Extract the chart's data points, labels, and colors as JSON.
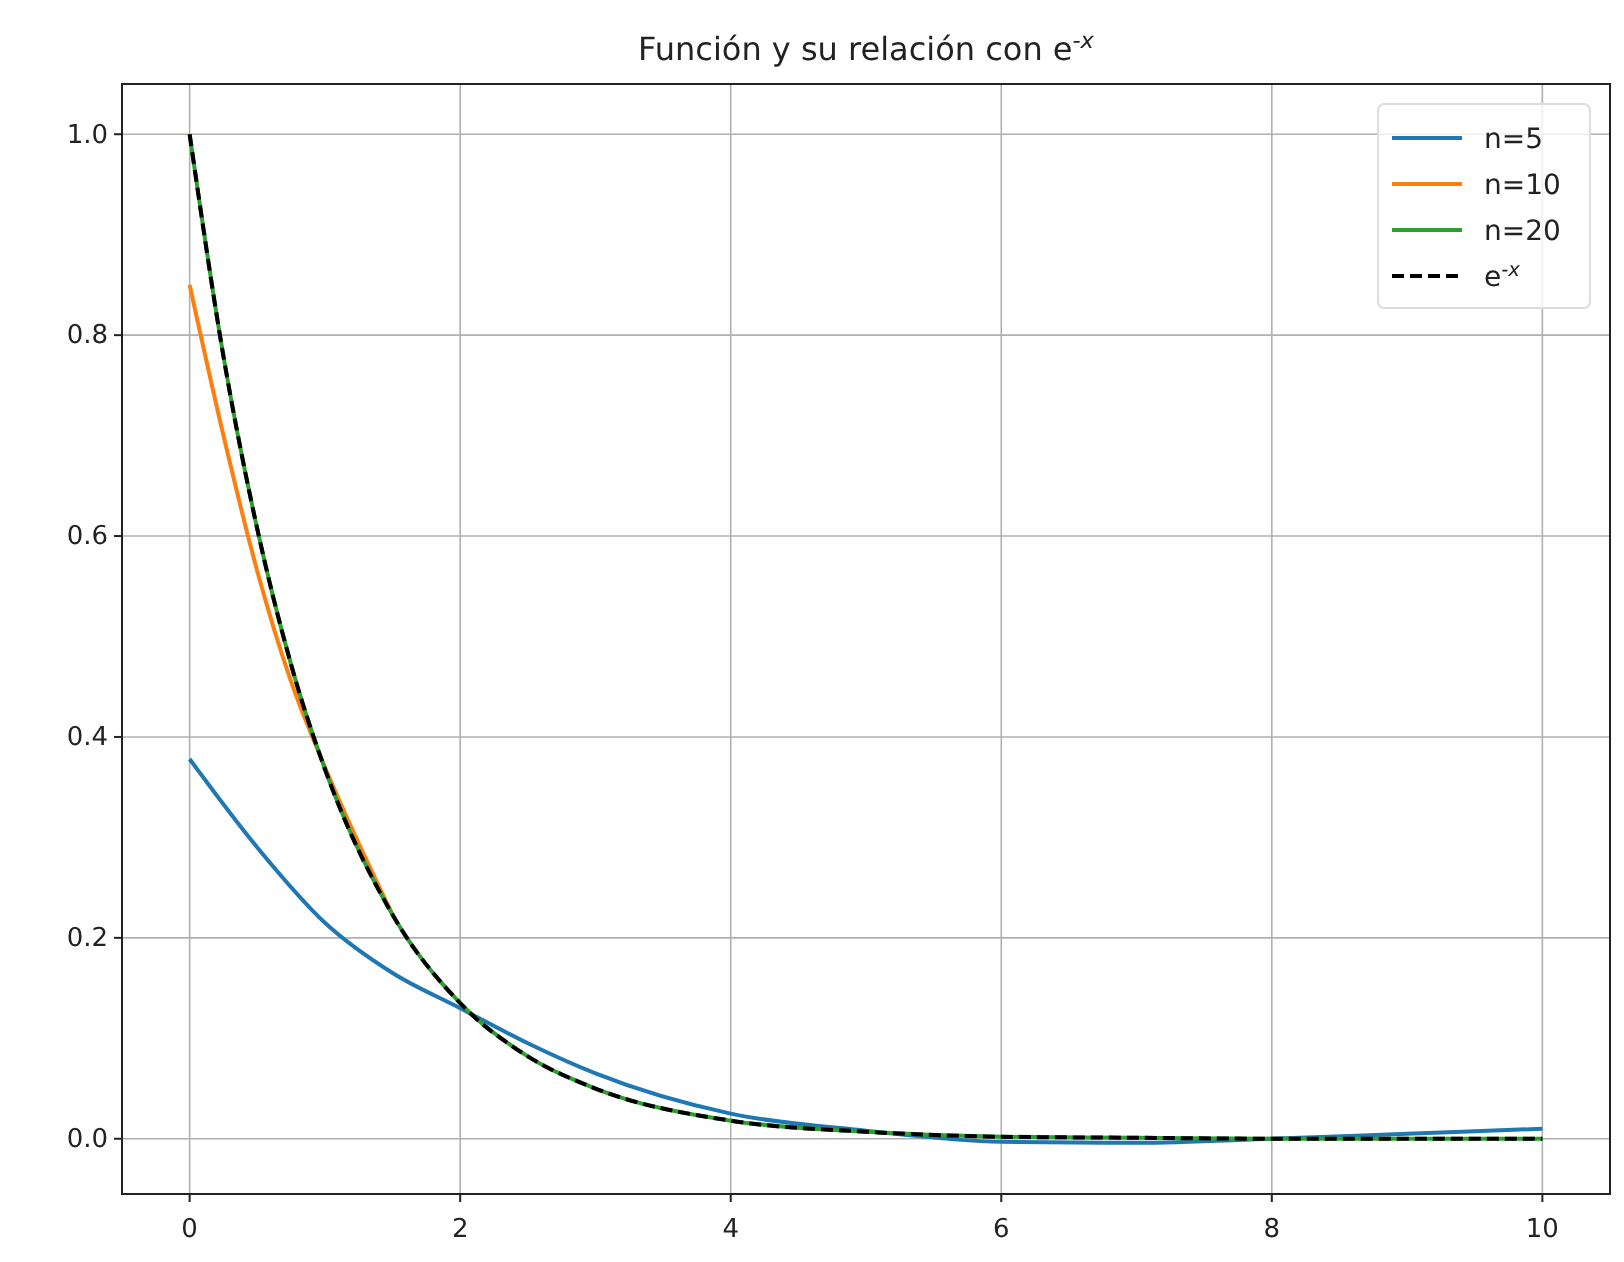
{
  "chart_data": {
    "type": "line",
    "title": "Función y su relación con e$^{-x}$",
    "xlim": [
      -0.5,
      10.5
    ],
    "ylim": [
      -0.055,
      1.05
    ],
    "xticks": [
      0,
      2,
      4,
      6,
      8,
      10
    ],
    "yticks": [
      {
        "value": 0,
        "label": "0.0"
      },
      {
        "value": 0.2,
        "label": "0.2"
      },
      {
        "value": 0.4,
        "label": "0.4"
      },
      {
        "value": 0.6,
        "label": "0.6"
      },
      {
        "value": 0.8,
        "label": "0.8"
      },
      {
        "value": 1,
        "label": "1.0"
      }
    ],
    "grid": true,
    "legend": "top right",
    "series": [
      {
        "name": "n=5",
        "color": "#1f77b4",
        "line_style": "solid",
        "x": [
          0,
          0.5,
          1,
          1.5,
          2,
          2.5,
          3,
          4,
          5,
          6,
          7,
          8,
          9,
          10
        ],
        "values": [
          0.378,
          0.29,
          0.215,
          0.165,
          0.13,
          0.095,
          0.065,
          0.025,
          0.008,
          -0.003,
          -0.004,
          0.0,
          0.005,
          0.01
        ]
      },
      {
        "name": "n=10",
        "color": "#ff7f0e",
        "line_style": "solid",
        "x": [
          0,
          0.25,
          0.5,
          0.75,
          1,
          1.5
        ],
        "values": [
          0.85,
          0.7,
          0.565,
          0.455,
          0.37,
          0.223
        ]
      },
      {
        "name": "n=20",
        "color": "#2ca02c",
        "line_style": "solid",
        "x": [
          0,
          0.25,
          0.5,
          0.75,
          1,
          1.5,
          2,
          2.5,
          3,
          4,
          5,
          6,
          7,
          8,
          9,
          10
        ],
        "values": [
          1.0,
          0.779,
          0.607,
          0.472,
          0.368,
          0.223,
          0.135,
          0.082,
          0.05,
          0.018,
          0.007,
          0.002,
          0.001,
          0.0,
          0.0,
          0.0
        ]
      },
      {
        "name": "e$^{-x}$",
        "color": "#000000",
        "line_style": "dashed",
        "x": [
          0,
          0.25,
          0.5,
          0.75,
          1,
          1.5,
          2,
          2.5,
          3,
          4,
          5,
          6,
          7,
          8,
          9,
          10
        ],
        "values": [
          1.0,
          0.779,
          0.607,
          0.472,
          0.368,
          0.223,
          0.135,
          0.082,
          0.05,
          0.018,
          0.007,
          0.002,
          0.001,
          0.0,
          0.0,
          0.0
        ]
      }
    ]
  }
}
